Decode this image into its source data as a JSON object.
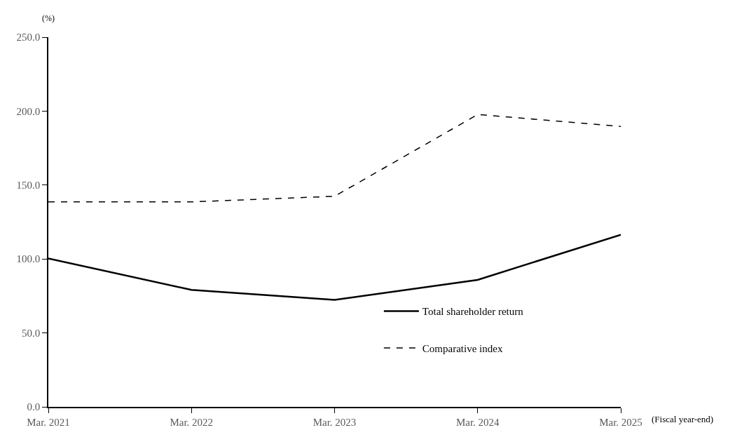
{
  "chart_data": {
    "type": "line",
    "ylabel": "(%)",
    "xlabel": "(Fiscal year-end)",
    "categories": [
      "Mar. 2021",
      "Mar. 2022",
      "Mar. 2023",
      "Mar. 2024",
      "Mar. 2025"
    ],
    "series": [
      {
        "name": "Total shareholder return",
        "color": "#000000",
        "line_style": "solid",
        "values": [
          100.4,
          79.1,
          72.3,
          85.9,
          116.4
        ]
      },
      {
        "name": "Comparative index",
        "color": "#000000",
        "line_style": "dashed",
        "values": [
          138.6,
          138.6,
          142.4,
          197.7,
          189.6
        ]
      }
    ],
    "ylim": [
      0,
      250
    ],
    "yticks": [
      {
        "value": 0,
        "label": "0.0"
      },
      {
        "value": 50,
        "label": "50.0"
      },
      {
        "value": 100,
        "label": "100.0"
      },
      {
        "value": 150,
        "label": "150.0"
      },
      {
        "value": 200,
        "label": "200.0"
      },
      {
        "value": 250,
        "label": "250.0"
      }
    ],
    "grid": false,
    "legend": "bottom right",
    "marker": "none"
  }
}
